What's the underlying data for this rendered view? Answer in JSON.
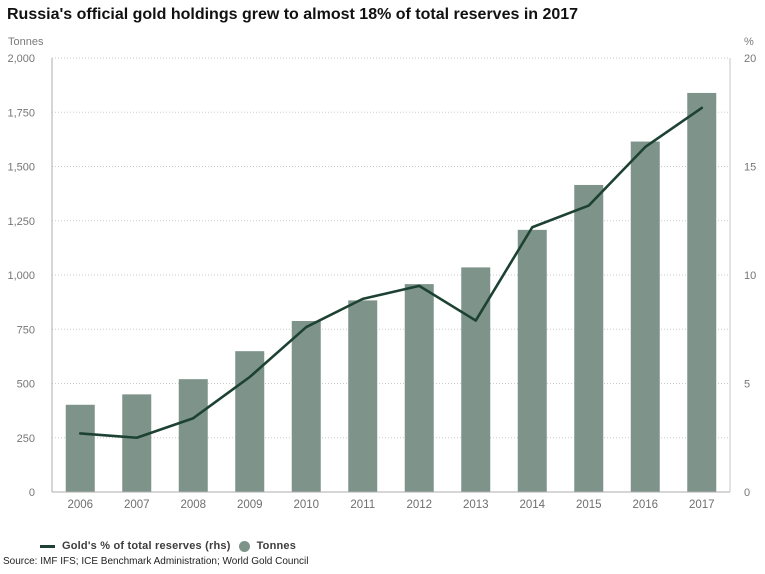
{
  "title": "Russia's official gold holdings grew to almost 18% of total reserves in 2017",
  "left_axis_unit": "Tonnes",
  "right_axis_unit": "%",
  "legend": {
    "line_label": "Gold's % of total reserves (rhs)",
    "bar_label": "Tonnes"
  },
  "source": "Source: IMF IFS; ICE Benchmark Administration; World Gold Council",
  "colors": {
    "bar": "#7e948a",
    "line": "#1d4234",
    "grid": "#cbcbcb",
    "axis": "#adadad",
    "right_border": "#c6c6c6",
    "tick_text": "#767676",
    "title_text": "#111111",
    "legend_text": "#3c3c3c"
  },
  "chart_data": {
    "type": "bar+line combo",
    "title": "Russia's official gold holdings grew to almost 18% of total reserves in 2017",
    "categories": [
      "2006",
      "2007",
      "2008",
      "2009",
      "2010",
      "2011",
      "2012",
      "2013",
      "2014",
      "2015",
      "2016",
      "2017"
    ],
    "series": [
      {
        "name": "Tonnes",
        "type": "bar",
        "axis": "left",
        "values": [
          402,
          450,
          520,
          649,
          788,
          883,
          958,
          1035,
          1208,
          1415,
          1615,
          1839
        ]
      },
      {
        "name": "Gold's % of total reserves (rhs)",
        "type": "line",
        "axis": "right",
        "values": [
          2.7,
          2.5,
          3.4,
          5.3,
          7.6,
          8.9,
          9.5,
          7.9,
          12.2,
          13.2,
          15.9,
          17.7
        ]
      }
    ],
    "left_axis": {
      "unit": "Tonnes",
      "min": 0,
      "max": 2000,
      "tick_step": 250,
      "ticks": [
        "0",
        "250",
        "500",
        "750",
        "1,000",
        "1,250",
        "1,500",
        "1,750",
        "2,000"
      ]
    },
    "right_axis": {
      "unit": "%",
      "min": 0,
      "max": 20,
      "tick_step": 5,
      "ticks": [
        "0",
        "5",
        "10",
        "15",
        "20"
      ]
    },
    "grid": "horizontal dotted lines every 250 tonnes / 2.5 %",
    "legend_position": "bottom-left"
  }
}
